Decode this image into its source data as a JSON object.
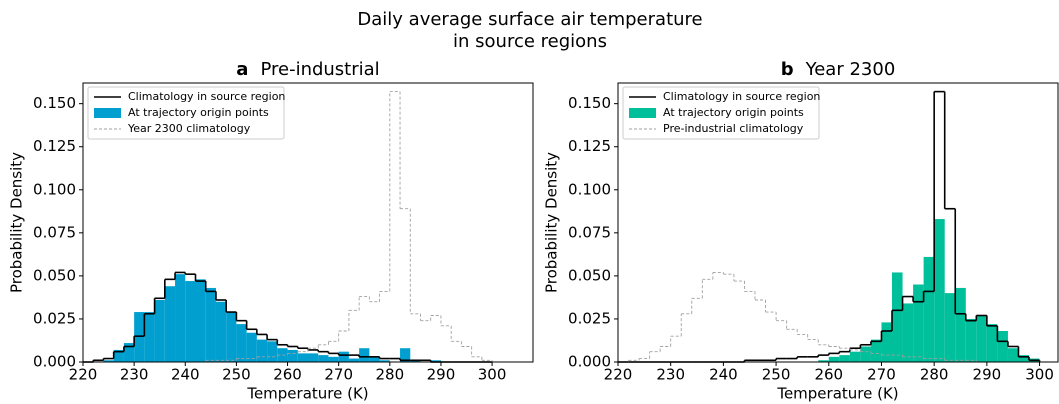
{
  "title": [
    "Daily average surface air temperature",
    "in source regions"
  ],
  "chart_data": [
    {
      "type": "histogram",
      "label": "a",
      "title": "Pre-industrial",
      "xlabel": "Temperature (K)",
      "ylabel": "Probability Density",
      "bins": [
        220,
        222,
        224,
        226,
        228,
        230,
        232,
        234,
        236,
        238,
        240,
        242,
        244,
        246,
        248,
        250,
        252,
        254,
        256,
        258,
        260,
        262,
        264,
        266,
        268,
        270,
        272,
        274,
        276,
        278,
        280,
        282,
        284,
        286,
        288,
        290,
        292,
        294,
        296,
        298,
        300
      ],
      "series": [
        {
          "name": "Climatology in source region",
          "style": "step",
          "color": "#000000",
          "values": [
            0,
            0.001,
            0.002,
            0.006,
            0.009,
            0.015,
            0.028,
            0.037,
            0.048,
            0.052,
            0.051,
            0.047,
            0.041,
            0.036,
            0.029,
            0.024,
            0.019,
            0.016,
            0.013,
            0.01,
            0.009,
            0.008,
            0.007,
            0.006,
            0.005,
            0.004,
            0.004,
            0.003,
            0.003,
            0.002,
            0.002,
            0.001,
            0.001,
            0.001,
            0,
            0,
            0,
            0,
            0,
            0
          ]
        },
        {
          "name": "At trajectory origin points",
          "style": "bar",
          "color": "#009fcf",
          "values": [
            0,
            0,
            0.001,
            0.007,
            0.011,
            0.029,
            0.029,
            0.036,
            0.044,
            0.051,
            0.047,
            0.048,
            0.043,
            0.035,
            0.029,
            0.022,
            0.017,
            0.013,
            0.012,
            0.008,
            0.007,
            0.005,
            0.005,
            0.004,
            0.003,
            0.006,
            0.002,
            0.008,
            0.003,
            0.001,
            0,
            0.008,
            0.001,
            0,
            0.001,
            0,
            0,
            0,
            0,
            0
          ]
        },
        {
          "name": "Year 2300 climatology",
          "style": "dashed-step",
          "color": "#a0a0a0",
          "values": [
            0,
            0,
            0,
            0,
            0,
            0,
            0,
            0,
            0,
            0,
            0,
            0,
            0.001,
            0.001,
            0.001,
            0.002,
            0.002,
            0.003,
            0.003,
            0.004,
            0.005,
            0.006,
            0.008,
            0.01,
            0.012,
            0.018,
            0.03,
            0.038,
            0.035,
            0.041,
            0.157,
            0.089,
            0.028,
            0.024,
            0.027,
            0.021,
            0.012,
            0.009,
            0.003,
            0.001
          ]
        }
      ],
      "xlim": [
        220,
        308
      ],
      "xticks": [
        220,
        230,
        240,
        250,
        260,
        270,
        280,
        290,
        300
      ],
      "ylim": [
        0,
        0.162
      ],
      "yticks": [
        {
          "value": 0,
          "label": "0.000"
        },
        {
          "value": 0.025,
          "label": "0.025"
        },
        {
          "value": 0.05,
          "label": "0.050"
        },
        {
          "value": 0.075,
          "label": "0.075"
        },
        {
          "value": 0.1,
          "label": "0.100"
        },
        {
          "value": 0.125,
          "label": "0.125"
        },
        {
          "value": 0.15,
          "label": "0.150"
        }
      ],
      "legend": "upper left",
      "grid": false
    },
    {
      "type": "histogram",
      "label": "b",
      "title": "Year 2300",
      "xlabel": "Temperature (K)",
      "ylabel": "Probability Density",
      "bins": [
        220,
        222,
        224,
        226,
        228,
        230,
        232,
        234,
        236,
        238,
        240,
        242,
        244,
        246,
        248,
        250,
        252,
        254,
        256,
        258,
        260,
        262,
        264,
        266,
        268,
        270,
        272,
        274,
        276,
        278,
        280,
        282,
        284,
        286,
        288,
        290,
        292,
        294,
        296,
        298,
        300
      ],
      "series": [
        {
          "name": "Climatology in source region",
          "style": "step",
          "color": "#000000",
          "values": [
            0,
            0,
            0,
            0,
            0,
            0,
            0,
            0,
            0,
            0,
            0,
            0,
            0.001,
            0.001,
            0.001,
            0.002,
            0.002,
            0.003,
            0.003,
            0.004,
            0.005,
            0.006,
            0.008,
            0.01,
            0.012,
            0.018,
            0.03,
            0.038,
            0.035,
            0.041,
            0.157,
            0.089,
            0.028,
            0.024,
            0.027,
            0.021,
            0.012,
            0.009,
            0.003,
            0.001
          ]
        },
        {
          "name": "At trajectory origin points",
          "style": "bar",
          "color": "#00bf9b",
          "values": [
            0,
            0,
            0,
            0,
            0,
            0,
            0,
            0,
            0,
            0,
            0,
            0,
            0,
            0,
            0,
            0,
            0,
            0,
            0,
            0.001,
            0.003,
            0.004,
            0.006,
            0.009,
            0.013,
            0.023,
            0.052,
            0.034,
            0.045,
            0.061,
            0.083,
            0.04,
            0.043,
            0.025,
            0.027,
            0.022,
            0.018,
            0.008,
            0.004,
            0.002
          ]
        },
        {
          "name": "Pre-industrial climatology",
          "style": "dashed-step",
          "color": "#a0a0a0",
          "values": [
            0,
            0.001,
            0.002,
            0.006,
            0.009,
            0.015,
            0.028,
            0.037,
            0.048,
            0.052,
            0.051,
            0.047,
            0.041,
            0.036,
            0.029,
            0.024,
            0.019,
            0.016,
            0.013,
            0.01,
            0.009,
            0.008,
            0.007,
            0.006,
            0.005,
            0.004,
            0.004,
            0.003,
            0.003,
            0.002,
            0.002,
            0.001,
            0.001,
            0.001,
            0,
            0,
            0,
            0,
            0,
            0
          ]
        }
      ],
      "xlim": [
        220,
        303.5
      ],
      "xticks": [
        220,
        230,
        240,
        250,
        260,
        270,
        280,
        290,
        300
      ],
      "ylim": [
        0,
        0.162
      ],
      "yticks": [
        {
          "value": 0,
          "label": "0.000"
        },
        {
          "value": 0.025,
          "label": "0.025"
        },
        {
          "value": 0.05,
          "label": "0.050"
        },
        {
          "value": 0.075,
          "label": "0.075"
        },
        {
          "value": 0.1,
          "label": "0.100"
        },
        {
          "value": 0.125,
          "label": "0.125"
        },
        {
          "value": 0.15,
          "label": "0.150"
        }
      ],
      "legend": "upper left",
      "grid": false
    }
  ]
}
